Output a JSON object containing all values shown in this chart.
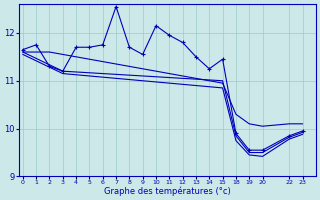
{
  "xlabel": "Graphe des températures (°c)",
  "background_color": "#cce8e8",
  "line_color": "#0000bb",
  "grid_color": "#99cccc",
  "x_tick_labels": [
    "0",
    "1",
    "2",
    "3",
    "4",
    "5",
    "6",
    "7",
    "8",
    "9",
    "10",
    "11",
    "12",
    "13",
    "14",
    "15",
    "18",
    "19",
    "20",
    "22",
    "23"
  ],
  "x_tick_positions": [
    0,
    1,
    2,
    3,
    4,
    5,
    6,
    7,
    8,
    9,
    10,
    11,
    12,
    13,
    14,
    15,
    16,
    17,
    18,
    20,
    21
  ],
  "ylim": [
    9.0,
    12.6
  ],
  "xlim": [
    -0.3,
    22
  ],
  "y_ticks": [
    9,
    10,
    11,
    12
  ],
  "series1_x": [
    0,
    1,
    2,
    3,
    4,
    5,
    6,
    7,
    8,
    9,
    10,
    11,
    12,
    13,
    14,
    15,
    16,
    17,
    18,
    20,
    21
  ],
  "series1_y": [
    11.65,
    11.75,
    11.3,
    11.2,
    11.7,
    11.7,
    11.75,
    12.55,
    11.7,
    11.55,
    12.15,
    11.95,
    11.8,
    11.5,
    11.25,
    11.45,
    9.9,
    9.55,
    9.55,
    9.85,
    9.95
  ],
  "series2_x": [
    0,
    1,
    2,
    3,
    4,
    5,
    6,
    7,
    8,
    9,
    10,
    11,
    12,
    13,
    14,
    15,
    16,
    17,
    18,
    20,
    21
  ],
  "series2_y": [
    11.6,
    11.6,
    11.6,
    11.55,
    11.5,
    11.45,
    11.4,
    11.35,
    11.3,
    11.25,
    11.2,
    11.15,
    11.1,
    11.05,
    11.0,
    10.95,
    10.3,
    10.1,
    10.05,
    10.1,
    10.1
  ],
  "series3_x": [
    0,
    3,
    15,
    16,
    17,
    18,
    20,
    21
  ],
  "series3_y": [
    11.6,
    11.2,
    11.0,
    9.85,
    9.5,
    9.5,
    9.82,
    9.92
  ],
  "series4_x": [
    0,
    3,
    15,
    16,
    17,
    18,
    20,
    21
  ],
  "series4_y": [
    11.55,
    11.15,
    10.85,
    9.75,
    9.45,
    9.42,
    9.78,
    9.88
  ]
}
